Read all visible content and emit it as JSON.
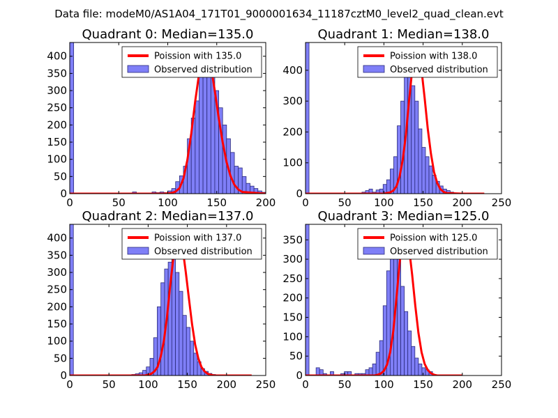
{
  "figure": {
    "suptitle": "Data file: modeM0/AS1A04_171T01_9000001634_11187cztM0_level2_quad_clean.evt"
  },
  "colors": {
    "bar_fill": "#7f7ff7",
    "bar_edge": "#2a2a7a",
    "poisson_line": "#ff0000",
    "axes": "#000000"
  },
  "chart_data": [
    {
      "type": "bar",
      "title": "Quadrant 0: Median=135.0",
      "median": 135.0,
      "xlim": [
        0,
        200
      ],
      "ylim": [
        0,
        440
      ],
      "xticks": [
        0,
        50,
        100,
        150,
        200
      ],
      "yticks": [
        0,
        50,
        100,
        150,
        200,
        250,
        300,
        350,
        400
      ],
      "legend": [
        "Poission with 135.0",
        "Observed distribution"
      ],
      "bin_width": 4,
      "bin_start": 0,
      "counts": [
        440,
        0,
        0,
        0,
        0,
        0,
        0,
        0,
        0,
        0,
        0,
        0,
        0,
        0,
        0,
        0,
        5,
        0,
        0,
        0,
        0,
        5,
        3,
        5,
        3,
        8,
        15,
        35,
        52,
        80,
        160,
        220,
        270,
        370,
        380,
        400,
        345,
        300,
        250,
        200,
        160,
        120,
        80,
        75,
        50,
        30,
        22,
        15,
        8,
        4
      ],
      "poisson": {
        "x": [
          0,
          96,
          104,
          108,
          112,
          116,
          120,
          124,
          128,
          132,
          136,
          140,
          144,
          148,
          152,
          156,
          160,
          164,
          168,
          172,
          176,
          200
        ],
        "y": [
          0,
          0,
          2,
          6,
          16,
          44,
          98,
          175,
          268,
          350,
          405,
          412,
          372,
          300,
          220,
          150,
          92,
          52,
          26,
          12,
          5,
          0
        ]
      }
    },
    {
      "type": "bar",
      "title": "Quadrant 1: Median=138.0",
      "median": 138.0,
      "xlim": [
        0,
        250
      ],
      "ylim": [
        0,
        490
      ],
      "xticks": [
        0,
        50,
        100,
        150,
        200,
        250
      ],
      "yticks": [
        0,
        100,
        200,
        300,
        400
      ],
      "legend": [
        "Poission with 138.0",
        "Observed distribution"
      ],
      "bin_width": 4.5,
      "bin_start": 0,
      "counts": [
        490,
        0,
        0,
        0,
        0,
        0,
        0,
        0,
        0,
        0,
        0,
        0,
        0,
        0,
        0,
        0,
        5,
        10,
        15,
        5,
        12,
        15,
        30,
        45,
        80,
        120,
        220,
        300,
        400,
        450,
        350,
        300,
        210,
        150,
        120,
        90,
        60,
        40,
        25,
        15,
        10,
        5
      ],
      "poisson": {
        "x": [
          0,
          100,
          104,
          108,
          112,
          116,
          120,
          124,
          128,
          132,
          136,
          140,
          144,
          148,
          152,
          156,
          160,
          164,
          168,
          172,
          176,
          180,
          200,
          228
        ],
        "y": [
          0,
          0,
          2,
          4,
          10,
          24,
          56,
          110,
          190,
          300,
          400,
          460,
          455,
          400,
          310,
          210,
          130,
          70,
          35,
          15,
          6,
          2,
          0,
          0
        ]
      }
    },
    {
      "type": "bar",
      "title": "Quadrant 2: Median=137.0",
      "median": 137.0,
      "xlim": [
        0,
        250
      ],
      "ylim": [
        0,
        440
      ],
      "xticks": [
        0,
        50,
        100,
        150,
        200,
        250
      ],
      "yticks": [
        0,
        50,
        100,
        150,
        200,
        250,
        300,
        350,
        400
      ],
      "legend": [
        "Poission with 137.0",
        "Observed distribution"
      ],
      "bin_width": 4.65,
      "bin_start": 0,
      "counts": [
        440,
        0,
        0,
        0,
        0,
        0,
        0,
        0,
        0,
        0,
        0,
        0,
        0,
        0,
        0,
        0,
        0,
        3,
        5,
        8,
        15,
        25,
        50,
        110,
        200,
        270,
        310,
        330,
        360,
        300,
        245,
        175,
        140,
        100,
        65,
        40,
        20,
        12,
        6,
        3,
        0
      ],
      "poisson": {
        "x": [
          0,
          96,
          100,
          104,
          108,
          112,
          116,
          120,
          124,
          128,
          132,
          136,
          140,
          144,
          148,
          152,
          156,
          160,
          164,
          168,
          172,
          176,
          180,
          184,
          232
        ],
        "y": [
          0,
          0,
          2,
          5,
          12,
          25,
          55,
          100,
          170,
          260,
          340,
          395,
          400,
          370,
          300,
          225,
          150,
          90,
          50,
          25,
          12,
          5,
          2,
          0,
          0
        ]
      }
    },
    {
      "type": "bar",
      "title": "Quadrant 3: Median=125.0",
      "median": 125.0,
      "xlim": [
        0,
        250
      ],
      "ylim": [
        0,
        390
      ],
      "xticks": [
        0,
        50,
        100,
        150,
        200,
        250
      ],
      "yticks": [
        0,
        50,
        100,
        150,
        200,
        250,
        300,
        350
      ],
      "legend": [
        "Poission with 125.0",
        "Observed distribution"
      ],
      "bin_width": 4.5,
      "bin_start": 0,
      "counts": [
        390,
        0,
        0,
        20,
        15,
        5,
        0,
        10,
        0,
        0,
        5,
        10,
        10,
        0,
        5,
        5,
        5,
        15,
        20,
        30,
        60,
        90,
        180,
        270,
        330,
        360,
        300,
        230,
        165,
        115,
        75,
        45,
        30,
        20,
        15,
        10
      ],
      "poisson": {
        "x": [
          0,
          88,
          92,
          96,
          100,
          104,
          108,
          112,
          116,
          120,
          124,
          128,
          132,
          136,
          140,
          144,
          148,
          152,
          156,
          160,
          164,
          168,
          200
        ],
        "y": [
          0,
          0,
          2,
          5,
          12,
          28,
          60,
          115,
          200,
          290,
          355,
          370,
          330,
          260,
          180,
          110,
          60,
          30,
          14,
          6,
          2,
          0,
          0
        ]
      }
    }
  ]
}
